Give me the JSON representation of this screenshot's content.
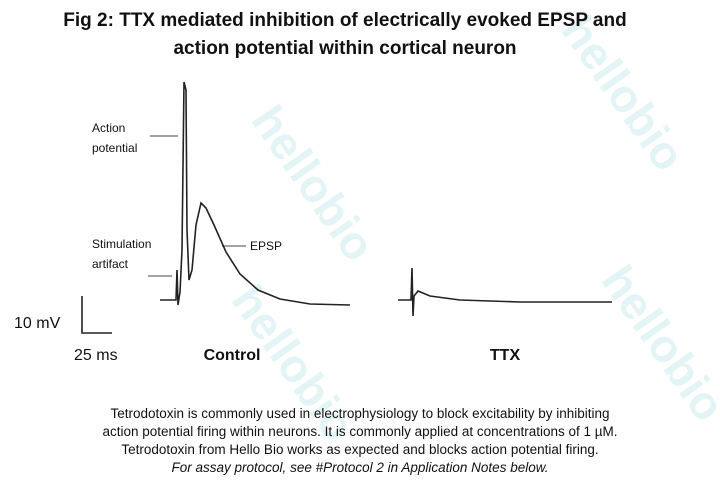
{
  "figure": {
    "title": [
      "Fig 2: TTX mediated inhibition of electrically evoked EPSP and",
      "action potential within cortical neuron"
    ],
    "labels": {
      "action_potential": [
        "Action",
        "potential"
      ],
      "stimulation_artifact": [
        "Stimulation",
        "artifact"
      ],
      "epsp": "EPSP",
      "scale_voltage": "10 mV",
      "scale_time": "25 ms",
      "control": "Control",
      "ttx": "TTX"
    },
    "watermark": "hellobio",
    "caption": [
      "Tetrodotoxin is commonly used in electrophysiology to block excitability by inhibiting",
      "action potential firing within neurons. It is commonly applied at concentrations of 1 µM.",
      "Tetrodotoxin from Hello Bio works as expected and blocks action potential firing.",
      "For assay protocol, see #Protocol 2 in Application Notes below."
    ]
  }
}
